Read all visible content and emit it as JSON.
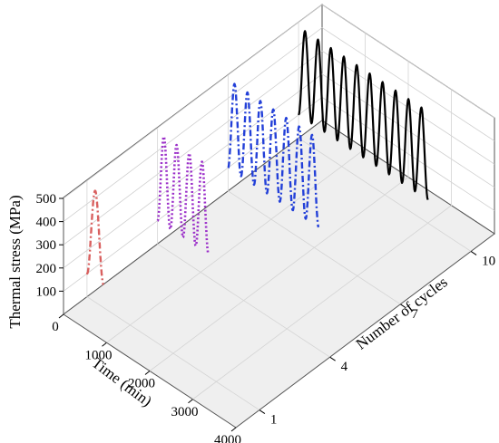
{
  "chart_data": {
    "type": "line",
    "projection": "3d",
    "title": "",
    "xlabel": "Time (min)",
    "ylabel": "Number of cycles",
    "zlabel": "Thermal stress (MPa)",
    "xlim": [
      0,
      4000
    ],
    "ylim": [
      0,
      11
    ],
    "zlim": [
      0,
      500
    ],
    "x_ticks": [
      0,
      1000,
      2000,
      3000,
      4000
    ],
    "y_ticks": [
      1,
      4,
      7,
      10
    ],
    "z_ticks": [
      100,
      200,
      300,
      400,
      500
    ],
    "grid": true,
    "legend": "none",
    "series": [
      {
        "cycles": 1,
        "color": "#d9605f",
        "dash": "dash-dot",
        "peaks": 1,
        "duration_min": 380,
        "peak_stress": 480,
        "min_stress": 100
      },
      {
        "cycles": 4,
        "color": "#9b2fc9",
        "dash": "dotted",
        "peaks": 4,
        "duration_min": 1180,
        "peak_stress": 480,
        "min_stress": 100
      },
      {
        "cycles": 7,
        "color": "#2340d8",
        "dash": "dash-dot",
        "peaks": 7,
        "duration_min": 2100,
        "peak_stress": 480,
        "min_stress": 100
      },
      {
        "cycles": 10,
        "color": "#000000",
        "dash": "solid",
        "peaks": 10,
        "duration_min": 3000,
        "peak_stress": 480,
        "min_stress": 100
      }
    ]
  }
}
